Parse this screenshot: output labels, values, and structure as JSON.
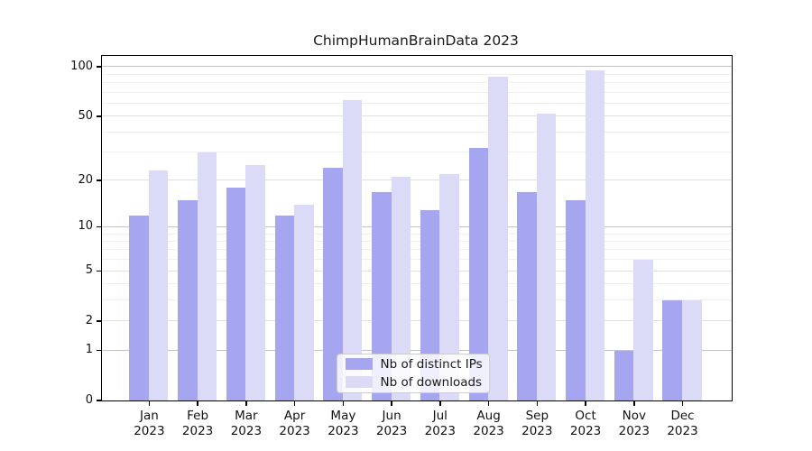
{
  "chart_data": {
    "type": "bar",
    "title": "ChimpHumanBrainData 2023",
    "year": "2023",
    "months": [
      "Jan",
      "Feb",
      "Mar",
      "Apr",
      "May",
      "Jun",
      "Jul",
      "Aug",
      "Sep",
      "Oct",
      "Nov",
      "Dec"
    ],
    "series": [
      {
        "name": "Nb of distinct IPs",
        "color": "#a5a5f0",
        "values": [
          12,
          15,
          18,
          12,
          24,
          17,
          13,
          32,
          17,
          15,
          1,
          3
        ]
      },
      {
        "name": "Nb of downloads",
        "color": "#dbdbf7",
        "values": [
          23,
          30,
          25,
          14,
          63,
          21,
          22,
          87,
          52,
          95,
          6,
          3
        ]
      }
    ],
    "yscale": "log1p",
    "yticks": [
      0,
      1,
      2,
      5,
      10,
      20,
      50,
      100
    ],
    "minor_gridlines": [
      3,
      4,
      6,
      7,
      8,
      9,
      30,
      40,
      60,
      70,
      80,
      90
    ],
    "ylim": [
      0,
      116
    ],
    "grid": true,
    "legend_position": "lower center"
  }
}
